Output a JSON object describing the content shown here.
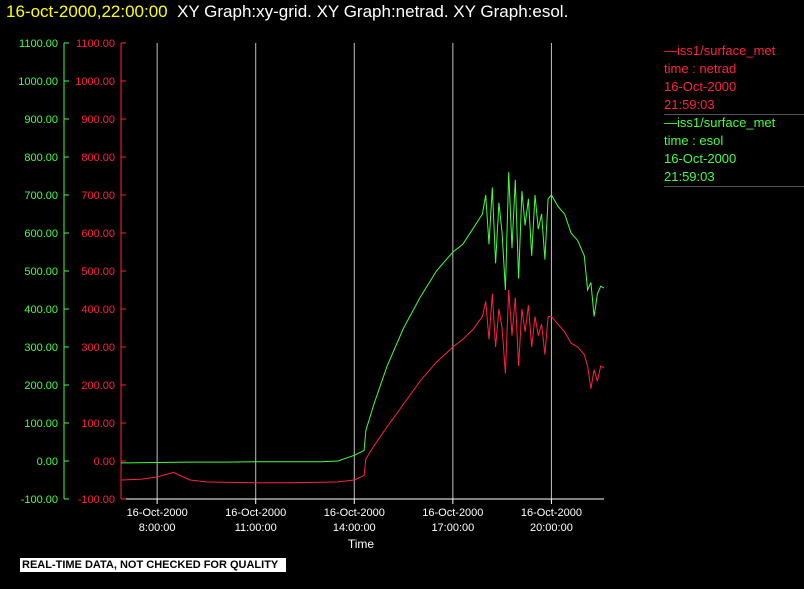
{
  "header": {
    "timestamp": "16-oct-2000,22:00:00",
    "graphs": "XY Graph:xy-grid.  XY Graph:netrad.  XY Graph:esol."
  },
  "legend": [
    {
      "line1": "—iss1/surface_met",
      "line2": "time : netrad",
      "line3": "16-Oct-2000",
      "line4": "21:59:03",
      "color": "#ff2040"
    },
    {
      "line1": "—iss1/surface_met",
      "line2": "time : esol",
      "line3": "16-Oct-2000",
      "line4": "21:59:03",
      "color": "#40ff40"
    }
  ],
  "notice": "REAL-TIME DATA, NOT CHECKED FOR QUALITY",
  "chart_data": {
    "type": "line",
    "xlabel": "Time",
    "x_ticks": [
      {
        "t": 8,
        "date": "16-Oct-2000",
        "time": "8:00:00"
      },
      {
        "t": 11,
        "date": "16-Oct-2000",
        "time": "11:00:00"
      },
      {
        "t": 14,
        "date": "16-Oct-2000",
        "time": "14:00:00"
      },
      {
        "t": 17,
        "date": "16-Oct-2000",
        "time": "17:00:00"
      },
      {
        "t": 20,
        "date": "16-Oct-2000",
        "time": "20:00:00"
      }
    ],
    "xlim": [
      6.9,
      21.6
    ],
    "ylim": [
      -100,
      1100
    ],
    "y_ticks": [
      -100,
      0,
      100,
      200,
      300,
      400,
      500,
      600,
      700,
      800,
      900,
      1000,
      1100
    ],
    "y_tick_labels": [
      "-100.00",
      "0.00",
      "100.00",
      "200.00",
      "300.00",
      "400.00",
      "500.00",
      "600.00",
      "700.00",
      "800.00",
      "900.00",
      "1000.00",
      "1100.00"
    ],
    "grid": "vertical",
    "colors": {
      "background": "#000000",
      "axis_frame": "#ffffff",
      "grid": "#c0c0c0"
    },
    "series": [
      {
        "label": "esol",
        "color": "#40ff40",
        "x": [
          6.9,
          8.0,
          9.0,
          10.0,
          11.0,
          12.0,
          13.0,
          13.5,
          14.0,
          14.3,
          14.35,
          14.6,
          15.0,
          15.5,
          16.0,
          16.5,
          17.0,
          17.3,
          17.6,
          17.9,
          18.0,
          18.1,
          18.2,
          18.3,
          18.4,
          18.5,
          18.6,
          18.7,
          18.8,
          18.9,
          19.0,
          19.1,
          19.2,
          19.3,
          19.4,
          19.5,
          19.6,
          19.7,
          19.8,
          19.9,
          20.0,
          20.2,
          20.4,
          20.6,
          20.8,
          21.0,
          21.1,
          21.2,
          21.3,
          21.4,
          21.5,
          21.6
        ],
        "y": [
          -5,
          -4,
          -3,
          -3,
          -2,
          -2,
          -2,
          0,
          15,
          28,
          80,
          150,
          250,
          350,
          430,
          500,
          550,
          570,
          610,
          650,
          700,
          570,
          720,
          520,
          680,
          600,
          450,
          760,
          560,
          740,
          480,
          710,
          620,
          690,
          540,
          700,
          610,
          650,
          530,
          690,
          700,
          670,
          650,
          600,
          580,
          540,
          450,
          470,
          380,
          440,
          460,
          455
        ]
      },
      {
        "label": "netrad",
        "color": "#ff2040",
        "x": [
          6.9,
          7.5,
          8.0,
          8.5,
          9.0,
          9.5,
          10.0,
          11.0,
          12.0,
          13.0,
          13.5,
          14.0,
          14.3,
          14.35,
          14.6,
          15.0,
          15.5,
          16.0,
          16.5,
          17.0,
          17.3,
          17.6,
          17.9,
          18.0,
          18.1,
          18.2,
          18.3,
          18.4,
          18.5,
          18.6,
          18.7,
          18.8,
          18.9,
          19.0,
          19.1,
          19.2,
          19.3,
          19.4,
          19.5,
          19.6,
          19.7,
          19.8,
          19.9,
          20.0,
          20.2,
          20.4,
          20.6,
          20.8,
          21.0,
          21.1,
          21.2,
          21.3,
          21.4,
          21.5,
          21.6
        ],
        "y": [
          -50,
          -48,
          -42,
          -30,
          -50,
          -55,
          -56,
          -57,
          -57,
          -56,
          -55,
          -50,
          -38,
          5,
          40,
          90,
          150,
          210,
          260,
          300,
          320,
          345,
          380,
          420,
          320,
          440,
          300,
          400,
          350,
          230,
          450,
          330,
          430,
          250,
          400,
          340,
          410,
          300,
          380,
          330,
          360,
          280,
          380,
          380,
          360,
          340,
          310,
          300,
          280,
          250,
          190,
          240,
          210,
          250,
          245
        ]
      }
    ]
  }
}
